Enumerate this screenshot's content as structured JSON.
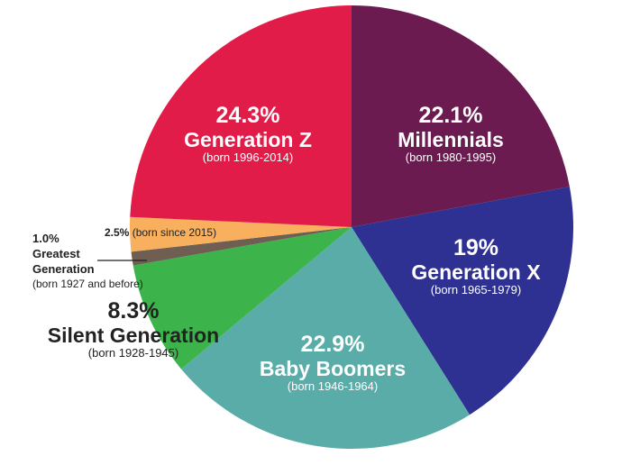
{
  "chart_data": {
    "type": "pie",
    "start": "top",
    "direction": "clockwise",
    "slices": [
      {
        "label": "Millennials",
        "value": 22.1,
        "pct_label": "22.1%",
        "born": "(born 1980-1995)",
        "color": "#6b1b50"
      },
      {
        "label": "Generation X",
        "value": 19,
        "pct_label": "19%",
        "born": "(born 1965-1979)",
        "color": "#2e3192"
      },
      {
        "label": "Baby Boomers",
        "value": 22.9,
        "pct_label": "22.9%",
        "born": "(born 1946-1964)",
        "color": "#5aaca8"
      },
      {
        "label": "Silent Generation",
        "value": 8.3,
        "pct_label": "8.3%",
        "born": "(born 1928-1945)",
        "color": "#3cb44b"
      },
      {
        "label": "Greatest Generation",
        "value": 1.0,
        "pct_label": "1.0%",
        "name_lines": [
          "Greatest",
          "Generation"
        ],
        "born": "(born 1927 and before)",
        "color": "#6e5f52"
      },
      {
        "label": "",
        "value": 2.5,
        "pct_label": "2.5%",
        "born": "(born since 2015)",
        "color": "#f8b05e"
      },
      {
        "label": "Generation Z",
        "value": 24.3,
        "pct_label": "24.3%",
        "born": "(born 1996-2014)",
        "color": "#e21c48"
      }
    ]
  }
}
